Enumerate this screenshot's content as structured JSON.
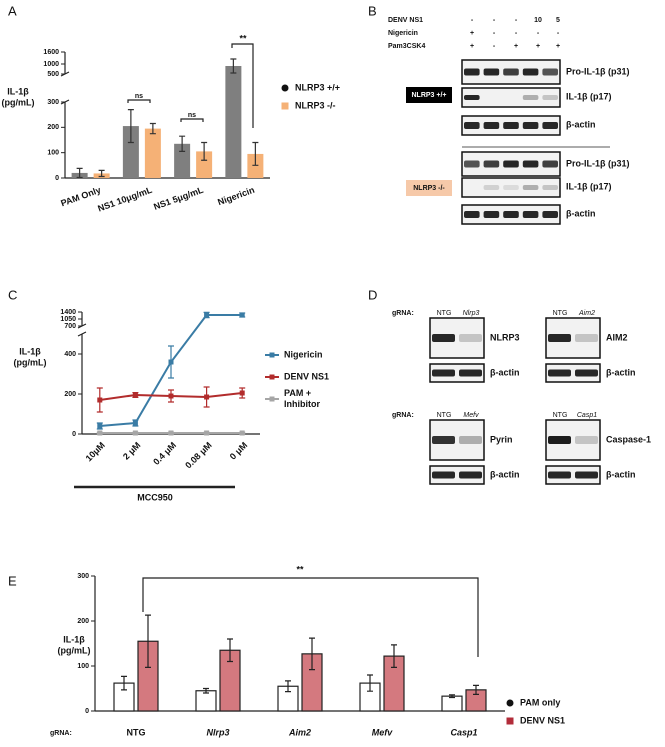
{
  "panel_labels": [
    "A",
    "B",
    "C",
    "D",
    "E"
  ],
  "chart_data": [
    {
      "type": "bar",
      "ylabel": [
        "IL-1β",
        "(pg/mL)"
      ],
      "categories": [
        "PAM Only",
        "NS1 10μg/mL",
        "NS1 5μg/mL",
        "Nigericin"
      ],
      "series": [
        {
          "name": "NLRP3 +/+",
          "color": "#7f7f7f",
          "values": [
            20,
            205,
            135,
            900
          ],
          "errors": [
            18,
            65,
            30,
            350
          ]
        },
        {
          "name": "NLRP3 -/-",
          "color": "#f5b176",
          "values": [
            18,
            195,
            105,
            95
          ],
          "errors": [
            12,
            20,
            35,
            45
          ]
        }
      ],
      "ylim": [
        0,
        1600
      ],
      "y_break": [
        300,
        500
      ],
      "yticks": [
        0,
        100,
        200,
        300,
        500,
        1000,
        1600
      ],
      "annotations": [
        "ns",
        "ns",
        "**"
      ]
    },
    {
      "type": "line",
      "ylabel": [
        "IL-1β",
        "(pg/mL)"
      ],
      "categories": [
        "10μM",
        "2 μM",
        "0.4 μM",
        "0.08 μM",
        "0 μM"
      ],
      "xlabel": "MCC950",
      "series": [
        {
          "name": "Nigericin",
          "color": "#3a7ca5",
          "values": [
            40,
            55,
            360,
            1250,
            1250
          ],
          "errors": [
            15,
            15,
            80,
            130,
            100
          ]
        },
        {
          "name": "DENV NS1",
          "color": "#b22c2c",
          "values": [
            170,
            195,
            190,
            185,
            205
          ],
          "errors": [
            60,
            12,
            30,
            50,
            25
          ]
        },
        {
          "name": "PAM + Inhibitor",
          "color": "#a6a6a6",
          "values": [
            5,
            5,
            5,
            5,
            5
          ],
          "errors": [
            3,
            3,
            3,
            3,
            3
          ]
        }
      ],
      "ylim": [
        0,
        1400
      ],
      "y_break": [
        500,
        700
      ],
      "yticks": [
        0,
        200,
        400,
        700,
        1050,
        1400
      ]
    },
    {
      "type": "bar",
      "ylabel": [
        "IL-1β",
        "(pg/mL)"
      ],
      "category_label": "gRNA:",
      "categories": [
        "NTG",
        "Nlrp3",
        "Aim2",
        "Mefv",
        "Casp1"
      ],
      "series": [
        {
          "name": "PAM only",
          "color": "#ffffff",
          "values": [
            62,
            45,
            55,
            62,
            33
          ],
          "errors": [
            15,
            5,
            12,
            18,
            3
          ]
        },
        {
          "name": "DENV NS1",
          "color": "#d4797f",
          "values": [
            155,
            135,
            127,
            122,
            47
          ],
          "errors": [
            58,
            25,
            35,
            25,
            10
          ]
        }
      ],
      "ylim": [
        0,
        300
      ],
      "yticks": [
        0,
        100,
        200,
        300
      ],
      "annotations": [
        "**"
      ]
    }
  ],
  "blot_b": {
    "conditions": [
      {
        "label": "DENV  NS1",
        "cells": [
          "-",
          "-",
          "-",
          "10",
          "5"
        ]
      },
      {
        "label": "Nigericin",
        "cells": [
          "+",
          "-",
          "-",
          "-",
          "-"
        ]
      },
      {
        "label": "Pam3CSK4",
        "cells": [
          "+",
          "-",
          "+",
          "+",
          "+"
        ]
      }
    ],
    "bands": [
      "Pro-IL-1β (p31)",
      "IL-1β (p17)",
      "β-actin"
    ],
    "genotypes": [
      "NLRP3 +/+",
      "NLRP3 -/-"
    ]
  },
  "blot_d": [
    {
      "guide_label": "gRNA:",
      "lanes": [
        "NTG",
        "Nlrp3"
      ],
      "bands": [
        "NLRP3",
        "β-actin"
      ]
    },
    {
      "lanes": [
        "NTG",
        "Aim2"
      ],
      "bands": [
        "AIM2",
        "β-actin"
      ]
    },
    {
      "guide_label": "gRNA:",
      "lanes": [
        "NTG",
        "Mefv"
      ],
      "bands": [
        "Pyrin",
        "β-actin"
      ]
    },
    {
      "lanes": [
        "NTG",
        "Casp1"
      ],
      "bands": [
        "Caspase-1",
        "β-actin"
      ]
    }
  ]
}
